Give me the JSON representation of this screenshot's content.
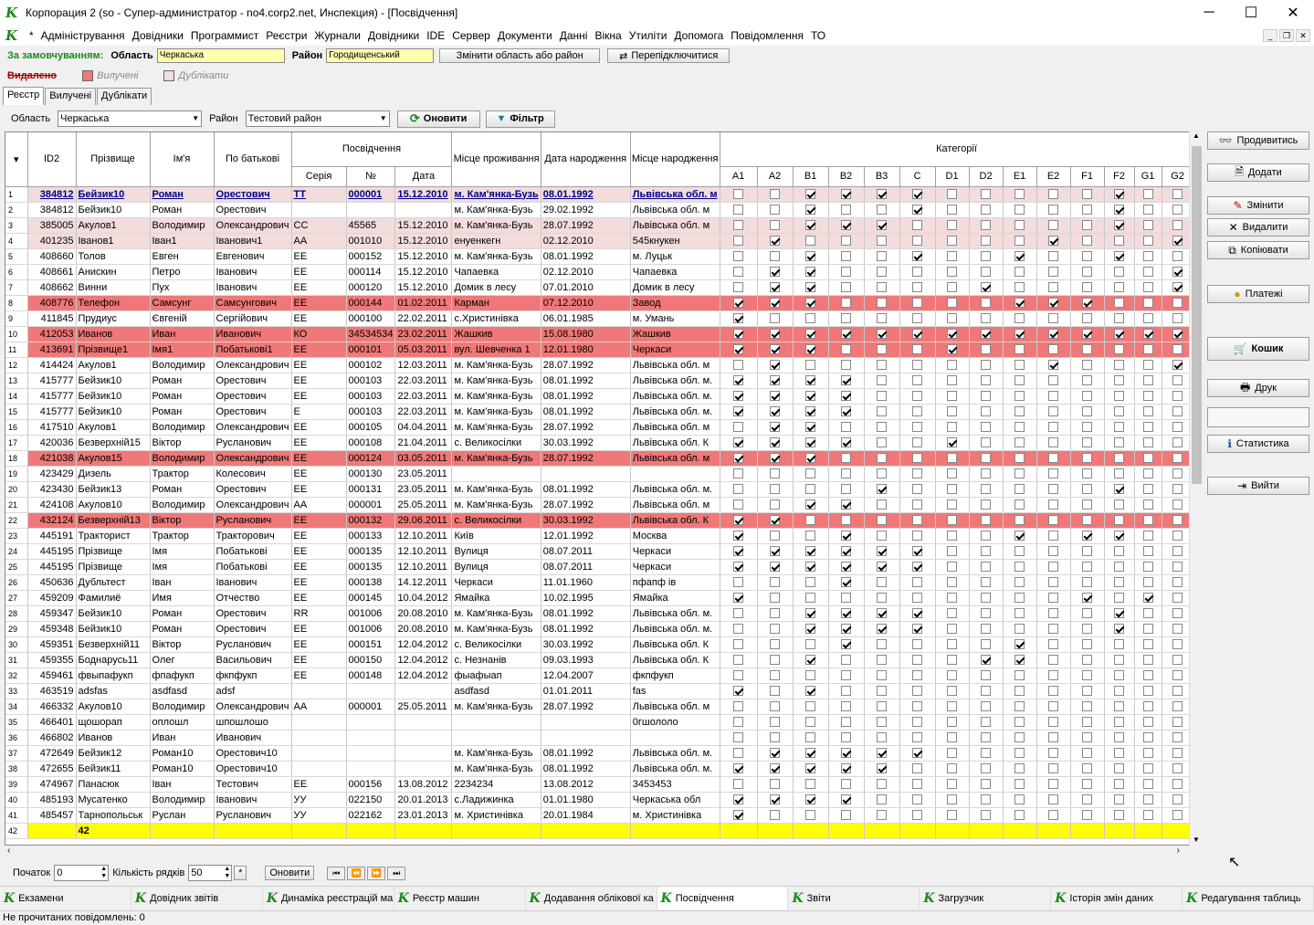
{
  "window": {
    "title": "Корпорация 2 (so - Супер-администратор - no4.corp2.net, Инспекция) - [Посвідчення]",
    "minimize": "─",
    "maximize": "☐",
    "close": "✕"
  },
  "menu": [
    "*",
    "Адміністрування",
    "Довідники",
    "Программист",
    "Реєстри",
    "Журнали",
    "Довідники",
    "IDE",
    "Сервер",
    "Документи",
    "Данні",
    "Вікна",
    "Утиліти",
    "Допомога",
    "Повідомлення",
    "ТО"
  ],
  "order": {
    "label": "За замовчуванням:",
    "oblast_label": "Область",
    "oblast_value": "Черкаська",
    "rayon_label": "Район",
    "rayon_value": "Городищенський",
    "change_btn": "Змінити область або район",
    "reconnect_btn": "Перепідключитися"
  },
  "legend": {
    "deleted": "Видалено",
    "removed": "Вилучені",
    "duplicates": "Дублікати",
    "removed_color": "#f07878",
    "dup_color": "#f2dcdc"
  },
  "tabs": [
    "Реєстр",
    "Вилучені",
    "Дублікати"
  ],
  "filter": {
    "oblast_label": "Область",
    "oblast_value": "Черкаська",
    "rayon_label": "Район",
    "rayon_value": "Тестовий район",
    "refresh_btn": "Оновити",
    "filter_btn": "Фільтр"
  },
  "headers": {
    "id": "ID2",
    "surname": "Прізвище",
    "name": "Ім'я",
    "patronymic": "По батькові",
    "cert": "Посвідчення",
    "series": "Серія",
    "number": "№",
    "date": "Дата",
    "residence": "Місце проживання",
    "birthdate": "Дата народження",
    "birthplace": "Місце народження",
    "categories": "Категорії",
    "cats": [
      "A1",
      "A2",
      "B1",
      "B2",
      "B3",
      "C",
      "D1",
      "D2",
      "E1",
      "E2",
      "F1",
      "F2",
      "G1",
      "G2"
    ]
  },
  "rows": [
    {
      "n": "1",
      "style": "first",
      "id": "384812",
      "sur": "Бейзик10",
      "nm": "Роман",
      "pat": "Орестович",
      "ser": "ТТ",
      "num": "000001",
      "dt": "15.12.2010",
      "res": "м. Кам'янка-Бузь",
      "bd": "08.01.1992",
      "bp": "Львівська обл. м",
      "c": "00111100000100"
    },
    {
      "n": "2",
      "style": "",
      "id": "384812",
      "sur": "Бейзик10",
      "nm": "Роман",
      "pat": "Орестович",
      "ser": "",
      "num": "",
      "dt": "",
      "res": "м. Кам'янка-Бузь",
      "bd": "29.02.1992",
      "bp": "Львівська обл. м",
      "c": "00100100000100"
    },
    {
      "n": "3",
      "style": "pink",
      "id": "385005",
      "sur": "Акулов1",
      "nm": "Володимир",
      "pat": "Олександрович",
      "ser": "СС",
      "num": "45565",
      "dt": "15.12.2010",
      "res": "м. Кам'янка-Бузь",
      "bd": "28.07.1992",
      "bp": "Львівська обл. м",
      "c": "00111000000100"
    },
    {
      "n": "4",
      "style": "pink",
      "id": "401235",
      "sur": "Іванов1",
      "nm": "Іван1",
      "pat": "Іванович1",
      "ser": "АА",
      "num": "001010",
      "dt": "15.12.2010",
      "res": "енуенкегн",
      "bd": "02.12.2010",
      "bp": "545кнукен",
      "c": "01000000010001"
    },
    {
      "n": "5",
      "style": "",
      "id": "408660",
      "sur": "Толов",
      "nm": "Евген",
      "pat": "Евгенович",
      "ser": "ЕЕ",
      "num": "000152",
      "dt": "15.12.2010",
      "res": "м. Кам'янка-Бузь",
      "bd": "08.01.1992",
      "bp": "м. Луцьк",
      "c": "00100100100100"
    },
    {
      "n": "6",
      "style": "",
      "id": "408661",
      "sur": "Анискин",
      "nm": "Петро",
      "pat": "Іванович",
      "ser": "ЕЕ",
      "num": "000114",
      "dt": "15.12.2010",
      "res": "Чапаевка",
      "bd": "02.12.2010",
      "bp": "Чапаевка",
      "c": "01100000000001"
    },
    {
      "n": "7",
      "style": "",
      "id": "408662",
      "sur": "Винни",
      "nm": "Пух",
      "pat": "Іванович",
      "ser": "ЕЕ",
      "num": "000120",
      "dt": "15.12.2010",
      "res": "Домик в лесу",
      "bd": "07.01.2010",
      "bp": "Домик в лесу",
      "c": "01100001000001"
    },
    {
      "n": "8",
      "style": "red",
      "id": "408776",
      "sur": "Телефон",
      "nm": "Самсунг",
      "pat": "Самсунгович",
      "ser": "ЕЕ",
      "num": "000144",
      "dt": "01.02.2011",
      "res": "Карман",
      "bd": "07.12.2010",
      "bp": "Завод",
      "c": "11100000111000"
    },
    {
      "n": "9",
      "style": "",
      "id": "411845",
      "sur": "Прудиус",
      "nm": "Євгеній",
      "pat": "Сергійович",
      "ser": "ЕЕ",
      "num": "000100",
      "dt": "22.02.2011",
      "res": "с.Христинівка",
      "bd": "06.01.1985",
      "bp": "м. Умань",
      "c": "10000000000000"
    },
    {
      "n": "10",
      "style": "red",
      "id": "412053",
      "sur": "Иванов",
      "nm": "Иван",
      "pat": "Иванович",
      "ser": "КО",
      "num": "34534534",
      "dt": "23.02.2011",
      "res": "Жашкив",
      "bd": "15.08.1980",
      "bp": "Жашкив",
      "c": "11111111111111"
    },
    {
      "n": "11",
      "style": "red",
      "id": "413691",
      "sur": "Прізвище1",
      "nm": "Імя1",
      "pat": "Побатькові1",
      "ser": "ЕЕ",
      "num": "000101",
      "dt": "05.03.2011",
      "res": "вул. Шевченка 1",
      "bd": "12.01.1980",
      "bp": "Черкаси",
      "c": "11100010000000"
    },
    {
      "n": "12",
      "style": "",
      "id": "414424",
      "sur": "Акулов1",
      "nm": "Володимир",
      "pat": "Олександрович",
      "ser": "ЕЕ",
      "num": "000102",
      "dt": "12.03.2011",
      "res": "м. Кам'янка-Бузь",
      "bd": "28.07.1992",
      "bp": "Львівська обл. м",
      "c": "01000000010001"
    },
    {
      "n": "13",
      "style": "",
      "id": "415777",
      "sur": "Бейзик10",
      "nm": "Роман",
      "pat": "Орестович",
      "ser": "ЕЕ",
      "num": "000103",
      "dt": "22.03.2011",
      "res": "м. Кам'янка-Бузь",
      "bd": "08.01.1992",
      "bp": "Львівська обл. м.",
      "c": "11110000000000"
    },
    {
      "n": "14",
      "style": "",
      "id": "415777",
      "sur": "Бейзик10",
      "nm": "Роман",
      "pat": "Орестович",
      "ser": "ЕЕ",
      "num": "000103",
      "dt": "22.03.2011",
      "res": "м. Кам'янка-Бузь",
      "bd": "08.01.1992",
      "bp": "Львівська обл. м.",
      "c": "11110000000000"
    },
    {
      "n": "15",
      "style": "",
      "id": "415777",
      "sur": "Бейзик10",
      "nm": "Роман",
      "pat": "Орестович",
      "ser": "Е",
      "num": "000103",
      "dt": "22.03.2011",
      "res": "м. Кам'янка-Бузь",
      "bd": "08.01.1992",
      "bp": "Львівська обл. м.",
      "c": "11110000000000"
    },
    {
      "n": "16",
      "style": "",
      "id": "417510",
      "sur": "Акулов1",
      "nm": "Володимир",
      "pat": "Олександрович",
      "ser": "ЕЕ",
      "num": "000105",
      "dt": "04.04.2011",
      "res": "м. Кам'янка-Бузь",
      "bd": "28.07.1992",
      "bp": "Львівська обл. м",
      "c": "01100000000000"
    },
    {
      "n": "17",
      "style": "",
      "id": "420036",
      "sur": "Безверхній15",
      "nm": "Віктор",
      "pat": "Русланович",
      "ser": "ЕЕ",
      "num": "000108",
      "dt": "21.04.2011",
      "res": "с. Великосілки",
      "bd": "30.03.1992",
      "bp": "Львівська обл. К",
      "c": "11110010000000"
    },
    {
      "n": "18",
      "style": "red",
      "id": "421038",
      "sur": "Акулов15",
      "nm": "Володимир",
      "pat": "Олександрович",
      "ser": "ЕЕ",
      "num": "000124",
      "dt": "03.05.2011",
      "res": "м. Кам'янка-Бузь",
      "bd": "28.07.1992",
      "bp": "Львівська обл. м",
      "c": "11100000000000"
    },
    {
      "n": "19",
      "style": "",
      "id": "423429",
      "sur": "Дизель",
      "nm": "Трактор",
      "pat": "Колесович",
      "ser": "ЕЕ",
      "num": "000130",
      "dt": "23.05.2011",
      "res": "",
      "bd": "",
      "bp": "",
      "c": "00000000000000"
    },
    {
      "n": "20",
      "style": "",
      "id": "423430",
      "sur": "Бейзик13",
      "nm": "Роман",
      "pat": "Орестович",
      "ser": "ЕЕ",
      "num": "000131",
      "dt": "23.05.2011",
      "res": "м. Кам'янка-Бузь",
      "bd": "08.01.1992",
      "bp": "Львівська обл. м.",
      "c": "00001000000100"
    },
    {
      "n": "21",
      "style": "",
      "id": "424108",
      "sur": "Акулов10",
      "nm": "Володимир",
      "pat": "Олександрович",
      "ser": "АА",
      "num": "000001",
      "dt": "25.05.2011",
      "res": "м. Кам'янка-Бузь",
      "bd": "28.07.1992",
      "bp": "Львівська обл. м",
      "c": "00110000000000"
    },
    {
      "n": "22",
      "style": "red",
      "id": "432124",
      "sur": "Безверхній13",
      "nm": "Віктор",
      "pat": "Русланович",
      "ser": "ЕЕ",
      "num": "000132",
      "dt": "29.06.2011",
      "res": "с. Великосілки",
      "bd": "30.03.1992",
      "bp": "Львівська обл. К",
      "c": "11000000000000"
    },
    {
      "n": "23",
      "style": "",
      "id": "445191",
      "sur": "Тракторист",
      "nm": "Трактор",
      "pat": "Тракторович",
      "ser": "ЕЕ",
      "num": "000133",
      "dt": "12.10.2011",
      "res": "Київ",
      "bd": "12.01.1992",
      "bp": "Москва",
      "c": "10010000101100"
    },
    {
      "n": "24",
      "style": "",
      "id": "445195",
      "sur": "Прізвище",
      "nm": "Імя",
      "pat": "Побатькові",
      "ser": "ЕЕ",
      "num": "000135",
      "dt": "12.10.2011",
      "res": "Вулиця",
      "bd": "08.07.2011",
      "bp": "Черкаси",
      "c": "11111100000000"
    },
    {
      "n": "25",
      "style": "",
      "id": "445195",
      "sur": "Прізвище",
      "nm": "Імя",
      "pat": "Побатькові",
      "ser": "ЕЕ",
      "num": "000135",
      "dt": "12.10.2011",
      "res": "Вулиця",
      "bd": "08.07.2011",
      "bp": "Черкаси",
      "c": "11111100000000"
    },
    {
      "n": "26",
      "style": "",
      "id": "450636",
      "sur": "Дубльтест",
      "nm": "Іван",
      "pat": "Іванович",
      "ser": "ЕЕ",
      "num": "000138",
      "dt": "14.12.2011",
      "res": "Черкаси",
      "bd": "11.01.1960",
      "bp": "пфапф ів",
      "c": "00010000000000"
    },
    {
      "n": "27",
      "style": "",
      "id": "459209",
      "sur": "Фамилиё",
      "nm": "Имя",
      "pat": "Отчество",
      "ser": "ЕЕ",
      "num": "000145",
      "dt": "10.04.2012",
      "res": "Ямайка",
      "bd": "10.02.1995",
      "bp": "Ямайка",
      "c": "10000000001010"
    },
    {
      "n": "28",
      "style": "",
      "id": "459347",
      "sur": "Бейзик10",
      "nm": "Роман",
      "pat": "Орестович",
      "ser": "RR",
      "num": "001006",
      "dt": "20.08.2010",
      "res": "м. Кам'янка-Бузь",
      "bd": "08.01.1992",
      "bp": "Львівська обл. м.",
      "c": "00111100000100"
    },
    {
      "n": "29",
      "style": "",
      "id": "459348",
      "sur": "Бейзик10",
      "nm": "Роман",
      "pat": "Орестович",
      "ser": "ЕЕ",
      "num": "001006",
      "dt": "20.08.2010",
      "res": "м. Кам'янка-Бузь",
      "bd": "08.01.1992",
      "bp": "Львівська обл. м.",
      "c": "00111100000100"
    },
    {
      "n": "30",
      "style": "",
      "id": "459351",
      "sur": "Безверхній11",
      "nm": "Віктор",
      "pat": "Русланович",
      "ser": "ЕЕ",
      "num": "000151",
      "dt": "12.04.2012",
      "res": "с. Великосілки",
      "bd": "30.03.1992",
      "bp": "Львівська обл. К",
      "c": "00010000100000"
    },
    {
      "n": "31",
      "style": "",
      "id": "459355",
      "sur": "Боднарусь11",
      "nm": "Олег",
      "pat": "Васильович",
      "ser": "ЕЕ",
      "num": "000150",
      "dt": "12.04.2012",
      "res": "с. Незнанів",
      "bd": "09.03.1993",
      "bp": "Львівська обл. К",
      "c": "00100001100000"
    },
    {
      "n": "32",
      "style": "",
      "id": "459461",
      "sur": "фвыпафукп",
      "nm": "фпафукп",
      "pat": "фкпфукп",
      "ser": "ЕЕ",
      "num": "000148",
      "dt": "12.04.2012",
      "res": "фыафыап",
      "bd": "12.04.2007",
      "bp": "фкпфукп",
      "c": "00000000000000"
    },
    {
      "n": "33",
      "style": "",
      "id": "463519",
      "sur": "adsfas",
      "nm": "asdfasd",
      "pat": "adsf",
      "ser": "",
      "num": "",
      "dt": "",
      "res": "asdfasd",
      "bd": "01.01.2011",
      "bp": "fas",
      "c": "10100000000000"
    },
    {
      "n": "34",
      "style": "",
      "id": "466332",
      "sur": "Акулов10",
      "nm": "Володимир",
      "pat": "Олександрович",
      "ser": "АА",
      "num": "000001",
      "dt": "25.05.2011",
      "res": "м. Кам'янка-Бузь",
      "bd": "28.07.1992",
      "bp": "Львівська обл. м",
      "c": "00000000000000"
    },
    {
      "n": "35",
      "style": "",
      "id": "466401",
      "sur": "щошорап",
      "nm": "оплошл",
      "pat": "шпошлошо",
      "ser": "",
      "num": "",
      "dt": "",
      "res": "",
      "bd": "",
      "bp": "0гшололо",
      "c": "00000000000000"
    },
    {
      "n": "36",
      "style": "",
      "id": "466802",
      "sur": "Иванов",
      "nm": "Иван",
      "pat": "Иванович",
      "ser": "",
      "num": "",
      "dt": "",
      "res": "",
      "bd": "",
      "bp": "",
      "c": "00000000000000"
    },
    {
      "n": "37",
      "style": "",
      "id": "472649",
      "sur": "Бейзик12",
      "nm": "Роман10",
      "pat": "Орестович10",
      "ser": "",
      "num": "",
      "dt": "",
      "res": "м. Кам'янка-Бузь",
      "bd": "08.01.1992",
      "bp": "Львівська обл. м.",
      "c": "01111100000000"
    },
    {
      "n": "38",
      "style": "",
      "id": "472655",
      "sur": "Бейзик11",
      "nm": "Роман10",
      "pat": "Орестович10",
      "ser": "",
      "num": "",
      "dt": "",
      "res": "м. Кам'янка-Бузь",
      "bd": "08.01.1992",
      "bp": "Львівська обл. м.",
      "c": "11111000000000"
    },
    {
      "n": "39",
      "style": "",
      "id": "474967",
      "sur": "Панасюк",
      "nm": "Іван",
      "pat": "Тестович",
      "ser": "ЕЕ",
      "num": "000156",
      "dt": "13.08.2012",
      "res": "2234234",
      "bd": "13.08.2012",
      "bp": "3453453",
      "c": "00000000000000"
    },
    {
      "n": "40",
      "style": "",
      "id": "485193",
      "sur": "Мусатенко",
      "nm": "Володимир",
      "pat": "Іванович",
      "ser": "УУ",
      "num": "022150",
      "dt": "20.01.2013",
      "res": "с.Ладижинка",
      "bd": "01.01.1980",
      "bp": "Черкаська обл",
      "c": "11110000000000"
    },
    {
      "n": "41",
      "style": "",
      "id": "485457",
      "sur": "Тарнопольськ",
      "nm": "Руслан",
      "pat": "Русланович",
      "ser": "УУ",
      "num": "022162",
      "dt": "23.01.2013",
      "res": "м. Христинівка",
      "bd": "20.01.1984",
      "bp": "м. Христинівка",
      "c": "10000000000000"
    }
  ],
  "footer": {
    "n": "42",
    "count": "42"
  },
  "right_buttons": {
    "view": "Продивитись",
    "add": "Додати",
    "edit": "Змінити",
    "delete": "Видалити",
    "copy": "Копіювати",
    "payments": "Платежі",
    "cart": "Кошик",
    "print": "Друк",
    "stats": "Статистика",
    "exit": "Вийти"
  },
  "pager": {
    "start_label": "Початок",
    "start_value": "0",
    "rows_label": "Кількість рядків",
    "rows_value": "50",
    "star": "*",
    "refresh": "Оновити"
  },
  "taskbar": [
    "Екзамени",
    "Довідник звітів",
    "Динаміка реєстрацій маш",
    "Реєстр машин",
    "Додавання облікової ка",
    "Посвідчення",
    "Звіти",
    "Загрузчик",
    "Історія змін даних",
    "Редагування таблиць"
  ],
  "status": "Не прочитаних повідомлень: 0"
}
